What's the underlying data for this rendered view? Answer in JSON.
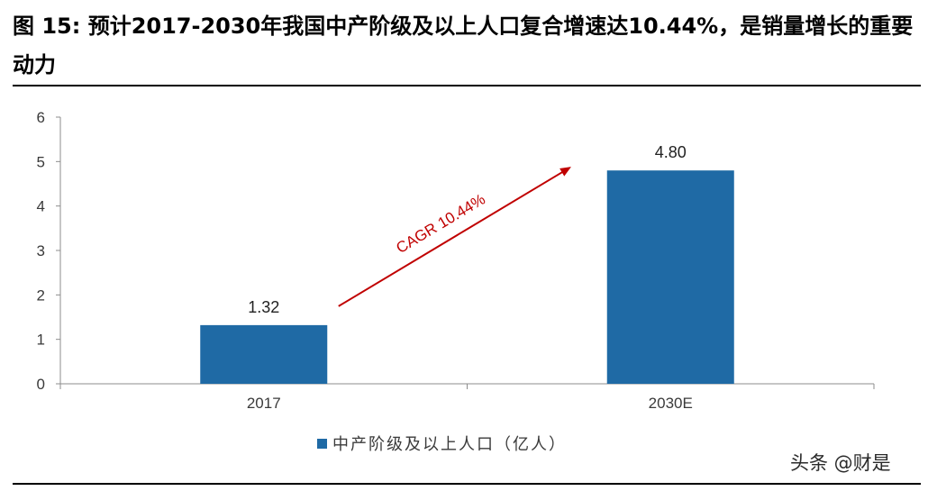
{
  "figure": {
    "title": "图 15: 预计2017-2030年我国中产阶级及以上人口复合增速达10.44%，是销量增长的重要动力"
  },
  "chart_data": {
    "type": "bar",
    "categories": [
      "2017",
      "2030E"
    ],
    "series": [
      {
        "name": "中产阶级及以上人口（亿人）",
        "values": [
          1.32,
          4.8
        ],
        "color": "#1f6aa5"
      }
    ],
    "data_labels": [
      "1.32",
      "4.80"
    ],
    "ylim": [
      0,
      6
    ],
    "yticks": [
      0,
      1,
      2,
      3,
      4,
      5,
      6
    ],
    "grid": false,
    "legend_position": "bottom-center",
    "annotation": {
      "text": "CAGR 10.44%",
      "color": "#c00000"
    }
  },
  "watermark": "头条 @财是"
}
